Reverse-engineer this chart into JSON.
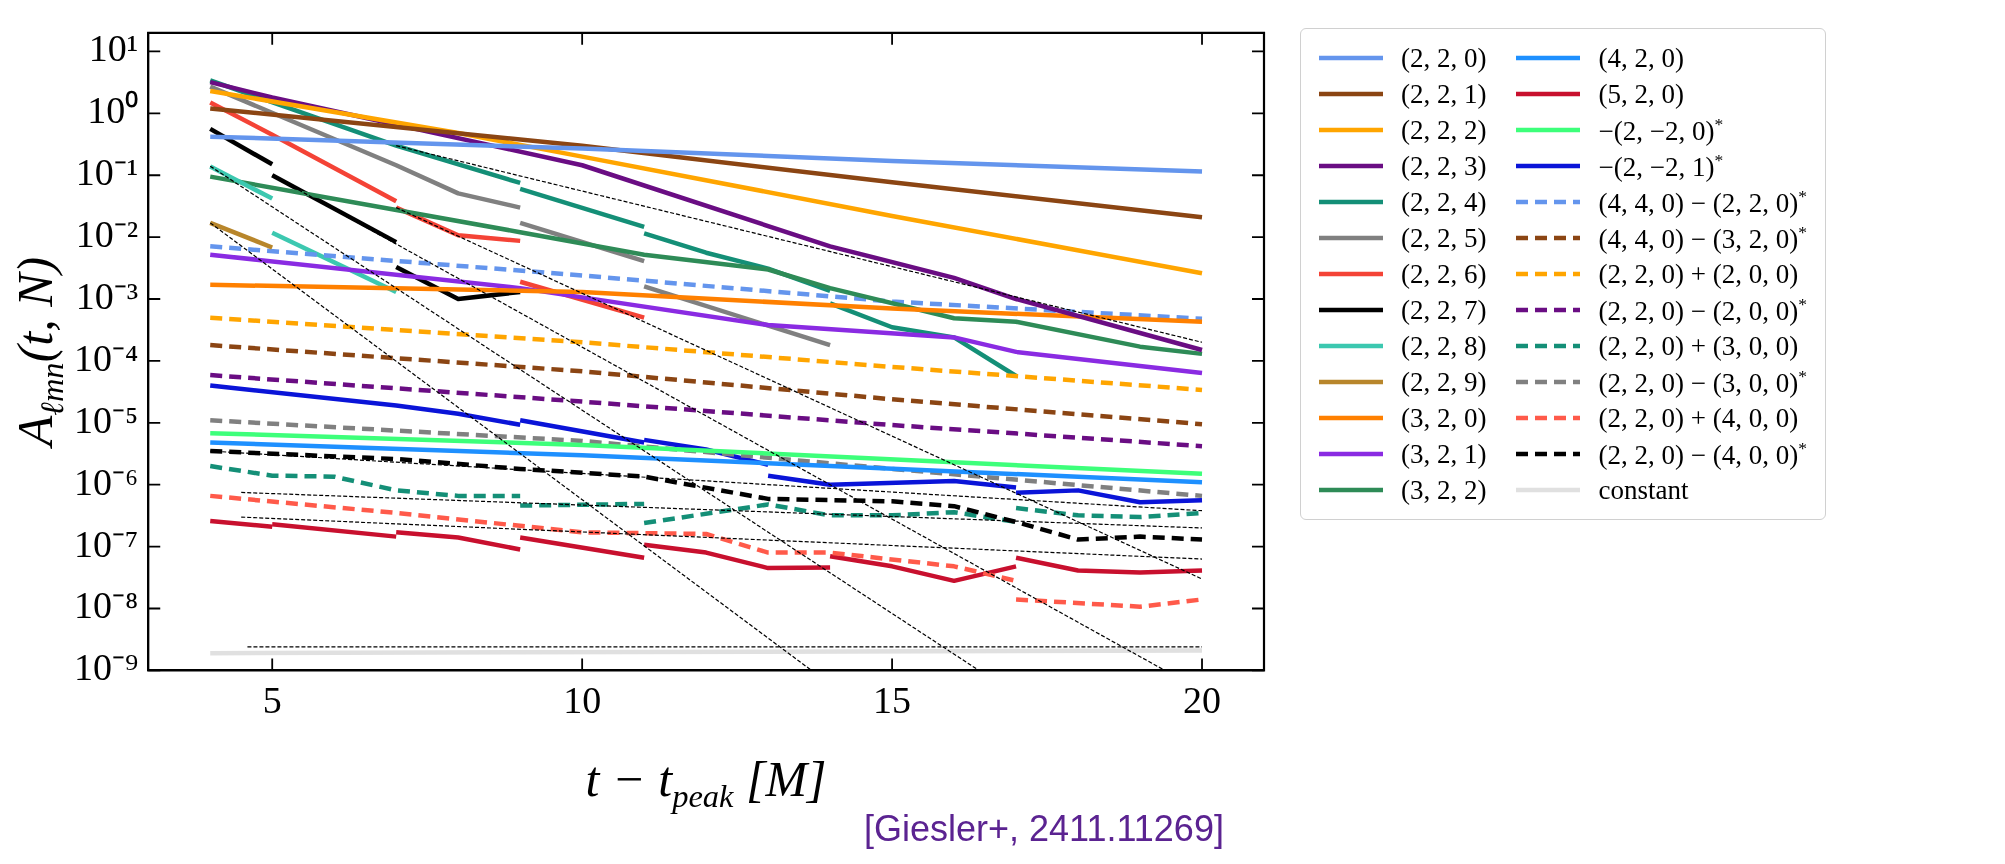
{
  "chart_data": {
    "type": "line",
    "xlabel": "t − t$_{peak}$ [M]",
    "ylabel": "A$_{ℓmn}$(t, N)",
    "annotations": [
      "[Giesler+, 2411.11269]"
    ],
    "xlim": [
      3,
      21
    ],
    "xticks": [
      5,
      10,
      15,
      20
    ],
    "ylim": [
      1e-09,
      20
    ],
    "log": "y",
    "yticks": [
      {
        "value": 1e-09,
        "label": "10⁻⁹"
      },
      {
        "value": 1e-08,
        "label": "10⁻⁸"
      },
      {
        "value": 1e-07,
        "label": "10⁻⁷"
      },
      {
        "value": 1e-06,
        "label": "10⁻⁶"
      },
      {
        "value": 1e-05,
        "label": "10⁻⁵"
      },
      {
        "value": 0.0001,
        "label": "10⁻⁴"
      },
      {
        "value": 0.001,
        "label": "10⁻³"
      },
      {
        "value": 0.01,
        "label": "10⁻²"
      },
      {
        "value": 0.1,
        "label": "10⁻¹"
      },
      {
        "value": 1,
        "label": "10⁰"
      },
      {
        "value": 10,
        "label": "10¹"
      }
    ],
    "legend": "right",
    "grid": false,
    "marker": "none",
    "series": [
      {
        "name": "(2, 2, 0)",
        "color": "#6495ed",
        "line_style": "solid",
        "x": [
          4,
          10,
          15,
          20
        ],
        "values": [
          0.42,
          0.27,
          0.17,
          0.115
        ]
      },
      {
        "name": "(2, 2, 1)",
        "color": "#8b4513",
        "line_style": "solid",
        "x": [
          4,
          10,
          15,
          20
        ],
        "values": [
          1.2,
          0.3,
          0.077,
          0.021
        ]
      },
      {
        "name": "(2, 2, 2)",
        "color": "#ffa500",
        "line_style": "solid",
        "x": [
          4,
          8,
          10,
          15,
          20
        ],
        "values": [
          2.3,
          0.48,
          0.2,
          0.022,
          0.0026
        ]
      },
      {
        "name": "(2, 2, 3)",
        "color": "#6a0d83",
        "line_style": "solid",
        "x": [
          4,
          5,
          10,
          14,
          16,
          17,
          20
        ],
        "values": [
          3.2,
          1.8,
          0.145,
          0.0071,
          0.0022,
          0.001,
          0.00015
        ]
      },
      {
        "name": "(2, 2, 4)",
        "color": "#148f77",
        "line_style": "solid",
        "x": [
          4,
          7,
          9
        ],
        "values": [
          3.4,
          0.3,
          0.075
        ]
      },
      {
        "name": "(2, 2, 5)",
        "color": "#808080",
        "line_style": "solid",
        "x": [
          4,
          7,
          8,
          9
        ],
        "values": [
          2.7,
          0.145,
          0.051,
          0.03
        ]
      },
      {
        "name": "(2, 2, 6)",
        "color": "#f44336",
        "line_style": "solid",
        "x": [
          4,
          5,
          7
        ],
        "values": [
          1.5,
          0.45,
          0.038
        ]
      },
      {
        "name": "(2, 2, 7)",
        "color": "#000000",
        "line_style": "solid",
        "x": [
          4,
          5
        ],
        "values": [
          0.56,
          0.15
        ]
      },
      {
        "name": "(2, 2, 8)",
        "color": "#3cc8b0",
        "line_style": "solid",
        "x": [
          4,
          5
        ],
        "values": [
          0.138,
          0.042
        ]
      },
      {
        "name": "(2, 2, 9)",
        "color": "#b8862b",
        "line_style": "solid",
        "x": [
          4,
          5
        ],
        "values": [
          0.017,
          0.0068
        ]
      },
      {
        "name": "(3, 2, 0)",
        "color": "#ff8000",
        "line_style": "solid",
        "x": [
          4,
          10,
          15,
          20
        ],
        "values": [
          0.0017,
          0.0013,
          0.0007,
          0.00043
        ]
      },
      {
        "name": "(3, 2, 1)",
        "color": "#8a2be2",
        "line_style": "solid",
        "x": [
          4,
          9,
          13,
          16,
          17,
          20
        ],
        "values": [
          0.0052,
          0.0015,
          0.00038,
          0.00024,
          0.00014,
          6.4e-05
        ]
      },
      {
        "name": "(3, 2, 2)",
        "color": "#2e8b57",
        "line_style": "solid",
        "x": [
          4,
          9,
          11,
          13,
          14,
          16,
          17,
          19,
          20
        ],
        "values": [
          0.095,
          0.012,
          0.0052,
          0.003,
          0.0015,
          0.00049,
          0.00043,
          0.00017,
          0.00013
        ]
      },
      {
        "name": "(4, 2, 0)",
        "color": "#1e90ff",
        "line_style": "solid",
        "x": [
          4,
          10,
          20
        ],
        "values": [
          4.8e-06,
          3e-06,
          1.1e-06
        ]
      },
      {
        "name": "(5, 2, 0)",
        "color": "#c8102e",
        "line_style": "solid",
        "x": [
          4,
          5
        ],
        "values": [
          2.6e-07,
          2.1e-07
        ]
      },
      {
        "name": "−(2, −2, 0)$^{*}$",
        "color": "#3dff7a",
        "line_style": "solid",
        "x": [
          4,
          10,
          20
        ],
        "values": [
          6.8e-06,
          4.4e-06,
          1.5e-06
        ]
      },
      {
        "name": "−(2, −2, 1)$^{*}$",
        "color": "#0a14d8",
        "line_style": "solid",
        "x": [
          4,
          7,
          8,
          9
        ],
        "values": [
          4e-05,
          1.9e-05,
          1.4e-05,
          9.3e-06
        ]
      },
      {
        "name": "(4, 4, 0) − (2, 2, 0)$^{*}$",
        "color": "#6495ed",
        "line_style": "dashed",
        "x": [
          4,
          10,
          15,
          20
        ],
        "values": [
          0.0071,
          0.0024,
          0.00091,
          0.00048
        ]
      },
      {
        "name": "(4, 4, 0) − (3, 2, 0)$^{*}$",
        "color": "#8b4513",
        "line_style": "dashed",
        "x": [
          4,
          10,
          15,
          20
        ],
        "values": [
          0.00018,
          6.8e-05,
          2.4e-05,
          9.5e-06
        ]
      },
      {
        "name": "(2, 2, 0) + (2, 0, 0)",
        "color": "#ffa500",
        "line_style": "dashed",
        "x": [
          4,
          10,
          15,
          20
        ],
        "values": [
          0.0005,
          0.0002,
          8e-05,
          3.4e-05
        ]
      },
      {
        "name": "(2, 2, 0) − (2, 0, 0)$^{*}$",
        "color": "#6a0d83",
        "line_style": "dashed",
        "x": [
          4,
          10,
          15,
          20
        ],
        "values": [
          5.9e-05,
          2.2e-05,
          9.2e-06,
          4.2e-06
        ]
      },
      {
        "name": "(2, 2, 0) + (3, 0, 0)",
        "color": "#148f77",
        "line_style": "dashed",
        "x": [
          4,
          5,
          6,
          7,
          8,
          9
        ],
        "values": [
          2e-06,
          1.4e-06,
          1.35e-06,
          8.1e-07,
          6.6e-07,
          6.6e-07
        ]
      },
      {
        "name": "(2, 2, 0) − (3, 0, 0)$^{*}$",
        "color": "#808080",
        "line_style": "dashed",
        "x": [
          4,
          10,
          15,
          20
        ],
        "values": [
          1.1e-05,
          5.1e-06,
          1.8e-06,
          6.6e-07
        ]
      },
      {
        "name": "(2, 2, 0) + (4, 0, 0)",
        "color": "#ff5a4a",
        "line_style": "dashed",
        "x": [
          4,
          7,
          10,
          12,
          13,
          14,
          16,
          17
        ],
        "values": [
          6.6e-07,
          3.5e-07,
          1.7e-07,
          1.6e-07,
          8e-08,
          8e-08,
          4.8e-08,
          2.8e-08
        ]
      },
      {
        "name": "(2, 2, 0) − (4, 0, 0)$^{*}$",
        "color": "#000000",
        "line_style": "dashed",
        "x": [
          4,
          7,
          9,
          11,
          13,
          15,
          16,
          17,
          18,
          19,
          20
        ],
        "values": [
          3.5e-06,
          2.6e-06,
          1.8e-06,
          1.35e-06,
          5.9e-07,
          5.4e-07,
          4.5e-07,
          2.5e-07,
          1.3e-07,
          1.45e-07,
          1.3e-07
        ]
      },
      {
        "name": "constant",
        "color": "#e0e0e0",
        "line_style": "solid",
        "x": [
          4,
          20
        ],
        "values": [
          1.9e-09,
          2.1e-09
        ]
      },
      {
        "color": "#148f77",
        "line_style": "solid",
        "x": [
          9,
          11
        ],
        "values": [
          0.06,
          0.0146
        ]
      },
      {
        "color": "#148f77",
        "line_style": "solid",
        "x": [
          11,
          12,
          13,
          14
        ],
        "values": [
          0.0115,
          0.0056,
          0.0031,
          0.00135
        ]
      },
      {
        "color": "#148f77",
        "line_style": "solid",
        "x": [
          14,
          15,
          16,
          17
        ],
        "values": [
          0.00085,
          0.00035,
          0.00024,
          5.7e-05
        ]
      },
      {
        "color": "#808080",
        "line_style": "solid",
        "x": [
          9,
          11
        ],
        "values": [
          0.017,
          0.0041
        ]
      },
      {
        "color": "#808080",
        "line_style": "solid",
        "x": [
          11,
          14
        ],
        "values": [
          0.0016,
          0.00018
        ]
      },
      {
        "color": "#f44336",
        "line_style": "solid",
        "x": [
          7,
          8,
          9
        ],
        "values": [
          0.03,
          0.0107,
          0.0087
        ]
      },
      {
        "color": "#f44336",
        "line_style": "solid",
        "x": [
          9,
          11
        ],
        "values": [
          0.0019,
          0.0005
        ]
      },
      {
        "color": "#000000",
        "line_style": "solid",
        "x": [
          5,
          7
        ],
        "values": [
          0.1,
          0.0083
        ]
      },
      {
        "color": "#000000",
        "line_style": "solid",
        "x": [
          7,
          8,
          9
        ],
        "values": [
          0.0033,
          0.001,
          0.0013
        ]
      },
      {
        "color": "#3cc8b0",
        "line_style": "solid",
        "x": [
          5,
          7
        ],
        "values": [
          0.0118,
          0.0013
        ]
      },
      {
        "color": "#c8102e",
        "line_style": "solid",
        "x": [
          5,
          7
        ],
        "values": [
          2.3e-07,
          1.45e-07
        ]
      },
      {
        "color": "#c8102e",
        "line_style": "solid",
        "x": [
          7,
          8,
          9
        ],
        "values": [
          1.7e-07,
          1.4e-07,
          9e-08
        ]
      },
      {
        "color": "#c8102e",
        "line_style": "solid",
        "x": [
          9,
          11
        ],
        "values": [
          1.4e-07,
          6.6e-08
        ]
      },
      {
        "color": "#c8102e",
        "line_style": "solid",
        "x": [
          11,
          12,
          13,
          14
        ],
        "values": [
          1.07e-07,
          8e-08,
          4.5e-08,
          4.6e-08
        ]
      },
      {
        "color": "#c8102e",
        "line_style": "solid",
        "x": [
          14,
          15,
          16,
          17
        ],
        "values": [
          7e-08,
          4.8e-08,
          2.8e-08,
          4.8e-08
        ]
      },
      {
        "color": "#c8102e",
        "line_style": "solid",
        "x": [
          17,
          18,
          19,
          20
        ],
        "values": [
          6.6e-08,
          4.1e-08,
          3.8e-08,
          4.1e-08
        ]
      },
      {
        "color": "#0a14d8",
        "line_style": "solid",
        "x": [
          9,
          11
        ],
        "values": [
          1.1e-05,
          4.8e-06
        ]
      },
      {
        "color": "#0a14d8",
        "line_style": "solid",
        "x": [
          11,
          12,
          13
        ],
        "values": [
          5.3e-06,
          3.7e-06,
          2.1e-06
        ]
      },
      {
        "color": "#0a14d8",
        "line_style": "solid",
        "x": [
          13,
          14,
          16,
          17
        ],
        "values": [
          1.4e-06,
          1e-06,
          1.15e-06,
          9e-07
        ]
      },
      {
        "color": "#0a14d8",
        "line_style": "solid",
        "x": [
          17,
          18,
          19,
          20
        ],
        "values": [
          7.4e-07,
          8.1e-07,
          5.2e-07,
          5.6e-07
        ]
      },
      {
        "color": "#148f77",
        "line_style": "dashed",
        "x": [
          9,
          11
        ],
        "values": [
          4.6e-07,
          4.9e-07
        ]
      },
      {
        "color": "#148f77",
        "line_style": "dashed",
        "x": [
          11,
          13,
          14,
          15,
          16,
          17
        ],
        "values": [
          2.4e-07,
          4.8e-07,
          3.2e-07,
          3.2e-07,
          3.6e-07,
          2.5e-07
        ]
      },
      {
        "color": "#148f77",
        "line_style": "dashed",
        "x": [
          17,
          18,
          19,
          20
        ],
        "values": [
          4.2e-07,
          3.2e-07,
          3e-07,
          3.5e-07
        ]
      },
      {
        "color": "#ff5a4a",
        "line_style": "dashed",
        "x": [
          17,
          19,
          20
        ],
        "values": [
          1.4e-08,
          1.07e-08,
          1.4e-08
        ]
      },
      {
        "type": "line",
        "color": "#000000",
        "line_style": "dashed",
        "x": [
          4,
          13.7
        ],
        "values": [
          0.017,
          1e-09
        ]
      },
      {
        "type": "line",
        "color": "#000000",
        "line_style": "dashed",
        "x": [
          4,
          16.4
        ],
        "values": [
          0.14,
          1e-09
        ]
      },
      {
        "type": "line",
        "color": "#000000",
        "line_style": "dashed",
        "x": [
          5,
          19.4
        ],
        "values": [
          0.1,
          1e-09
        ]
      },
      {
        "type": "line",
        "color": "#000000",
        "line_style": "dashed",
        "x": [
          7,
          20
        ],
        "values": [
          0.03,
          3e-08
        ]
      },
      {
        "type": "line",
        "color": "#000000",
        "line_style": "dashed",
        "x": [
          7,
          20
        ],
        "values": [
          0.3,
          0.0002
        ]
      },
      {
        "type": "line",
        "color": "#000000",
        "line_style": "dashed",
        "x": [
          4.6,
          20
        ],
        "values": [
          2.4e-09,
          2.4e-09
        ]
      },
      {
        "type": "line",
        "color": "#000000",
        "line_style": "dashed",
        "x": [
          4.5,
          20
        ],
        "values": [
          3e-07,
          6.3e-08
        ]
      },
      {
        "type": "line",
        "color": "#000000",
        "line_style": "dashed",
        "x": [
          4.5,
          20
        ],
        "values": [
          7.5e-07,
          2e-07
        ]
      },
      {
        "type": "line",
        "color": "#000000",
        "line_style": "dashed",
        "x": [
          4,
          20
        ],
        "values": [
          3.5e-06,
          3.8e-07
        ]
      }
    ]
  }
}
